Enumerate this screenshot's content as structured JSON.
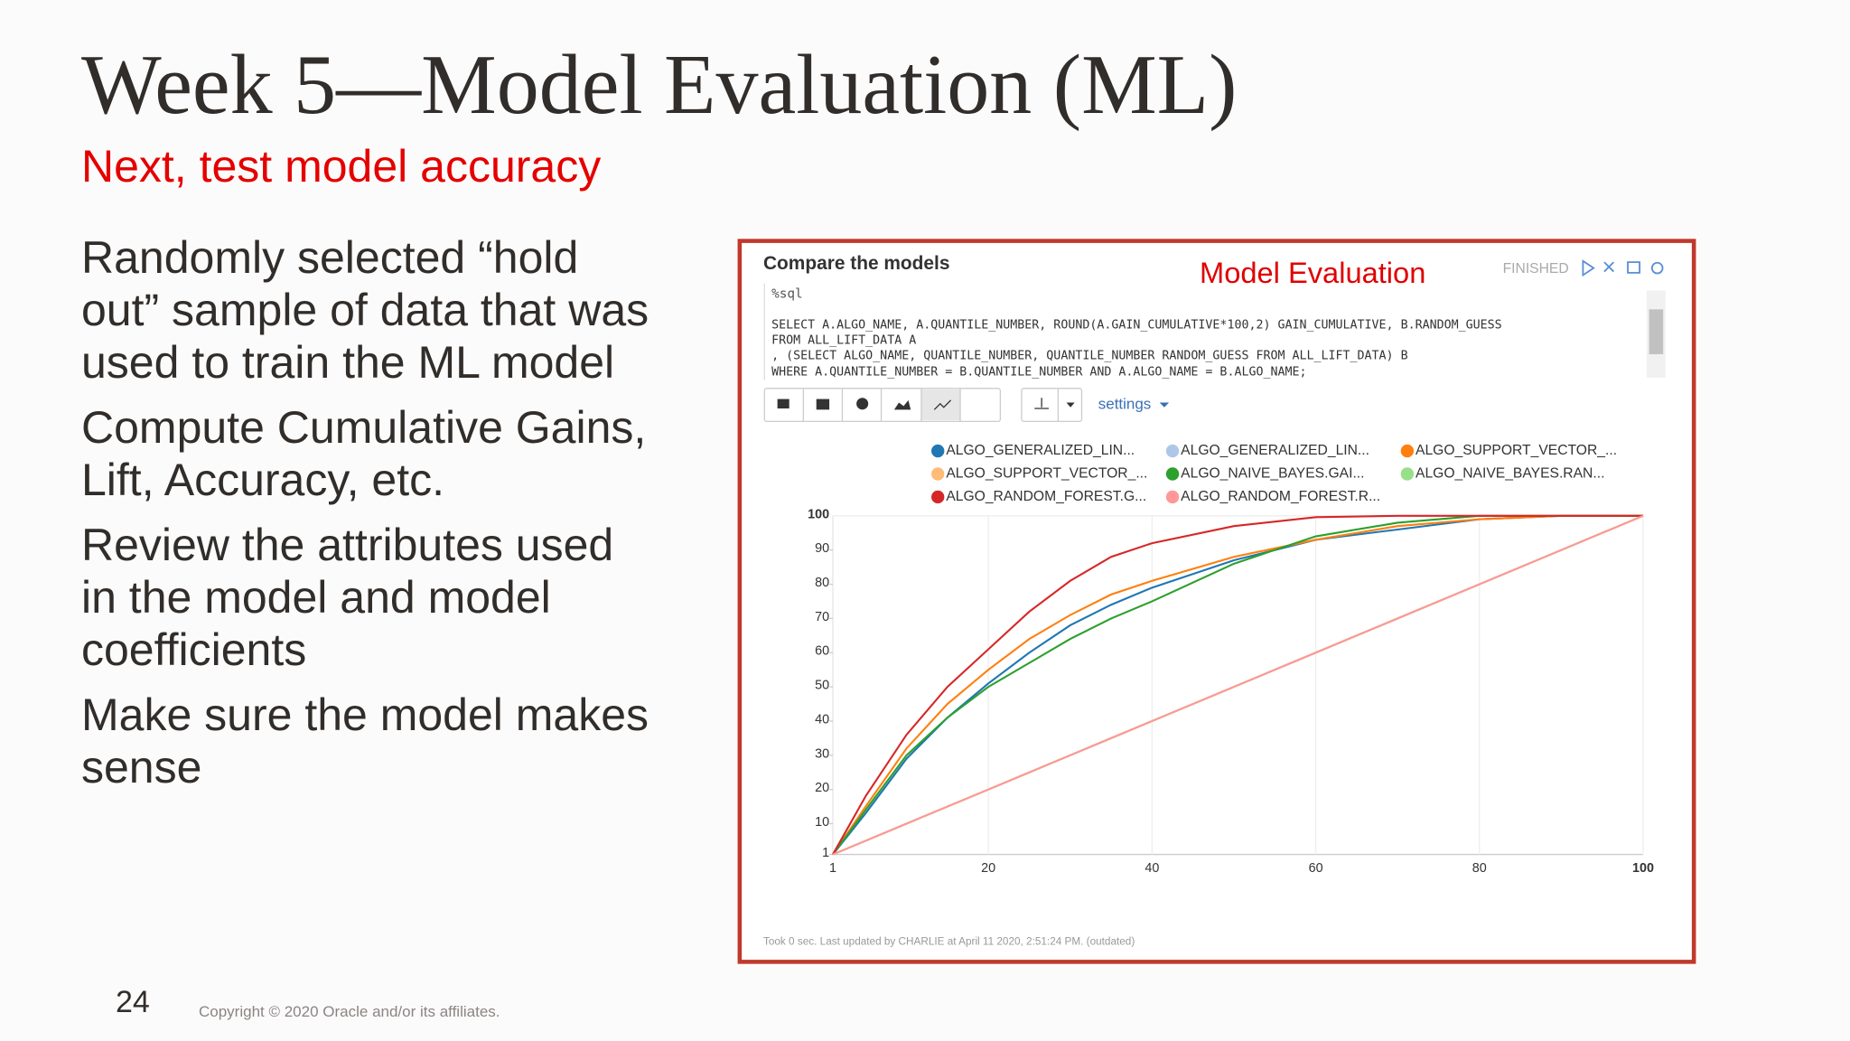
{
  "slide": {
    "title": "Week 5—Model Evaluation (ML)",
    "subtitle": "Next, test model accuracy",
    "bullets": [
      "Randomly selected “hold out” sample of data that was used to train the ML model",
      "Compute Cumulative Gains, Lift, Accuracy, etc.",
      "Review the attributes used in the model and  model coefficients",
      "Make sure the model makes sense"
    ],
    "page_number": "24",
    "copyright": "Copyright © 2020 Oracle and/or its affiliates."
  },
  "panel": {
    "heading": "Compare the models",
    "annotation": "Model Evaluation",
    "status": "FINISHED",
    "interpreter": "%sql",
    "sql": [
      "SELECT A.ALGO_NAME, A.QUANTILE_NUMBER, ROUND(A.GAIN_CUMULATIVE*100,2) GAIN_CUMULATIVE, B.RANDOM_GUESS",
      "FROM ALL_LIFT_DATA A",
      ", (SELECT ALGO_NAME, QUANTILE_NUMBER, QUANTILE_NUMBER RANDOM_GUESS FROM ALL_LIFT_DATA) B",
      "WHERE A.QUANTILE_NUMBER = B.QUANTILE_NUMBER AND A.ALGO_NAME = B.ALGO_NAME;"
    ],
    "settings": "settings",
    "footer": "Took 0 sec. Last updated by CHARLIE at April 11 2020, 2:51:24 PM. (outdated)"
  },
  "chart_data": {
    "type": "line",
    "x": [
      1,
      5,
      10,
      15,
      20,
      25,
      30,
      35,
      40,
      50,
      60,
      70,
      80,
      90,
      100
    ],
    "series": [
      {
        "name": "ALGO_GENERALIZED_LIN...",
        "color": "#1f77b4",
        "values": [
          1,
          13,
          29,
          41,
          51,
          60,
          68,
          74,
          79,
          87,
          93,
          96,
          99,
          100,
          100
        ]
      },
      {
        "name": "ALGO_GENERALIZED_LIN...",
        "color": "#aec7e8",
        "values": [
          1,
          5,
          10,
          15,
          20,
          25,
          30,
          35,
          40,
          50,
          60,
          70,
          80,
          90,
          100
        ]
      },
      {
        "name": "ALGO_SUPPORT_VECTOR_...",
        "color": "#ff7f0e",
        "values": [
          1,
          15,
          32,
          45,
          55,
          64,
          71,
          77,
          81,
          88,
          93,
          97,
          99,
          100,
          100
        ]
      },
      {
        "name": "ALGO_SUPPORT_VECTOR_...",
        "color": "#ffbb78",
        "values": [
          1,
          5,
          10,
          15,
          20,
          25,
          30,
          35,
          40,
          50,
          60,
          70,
          80,
          90,
          100
        ]
      },
      {
        "name": "ALGO_NAIVE_BAYES.GAI...",
        "color": "#2ca02c",
        "values": [
          1,
          14,
          30,
          41,
          50,
          57,
          64,
          70,
          75,
          86,
          94,
          98,
          100,
          100,
          100
        ]
      },
      {
        "name": "ALGO_NAIVE_BAYES.RAN...",
        "color": "#98df8a",
        "values": [
          1,
          5,
          10,
          15,
          20,
          25,
          30,
          35,
          40,
          50,
          60,
          70,
          80,
          90,
          100
        ]
      },
      {
        "name": "ALGO_RANDOM_FOREST.G...",
        "color": "#d62728",
        "values": [
          1,
          18,
          36,
          50,
          61,
          72,
          81,
          88,
          92,
          97,
          99.6,
          100,
          100,
          100,
          100
        ]
      },
      {
        "name": "ALGO_RANDOM_FOREST.R...",
        "color": "#ff9896",
        "values": [
          1,
          5,
          10,
          15,
          20,
          25,
          30,
          35,
          40,
          50,
          60,
          70,
          80,
          90,
          100
        ]
      }
    ],
    "xlim": [
      1,
      100
    ],
    "ylim": [
      1,
      100
    ],
    "xticks": [
      1,
      20,
      40,
      60,
      80,
      100
    ],
    "yticks": [
      1,
      10,
      20,
      30,
      40,
      50,
      60,
      70,
      80,
      90,
      100
    ],
    "grid": true
  }
}
